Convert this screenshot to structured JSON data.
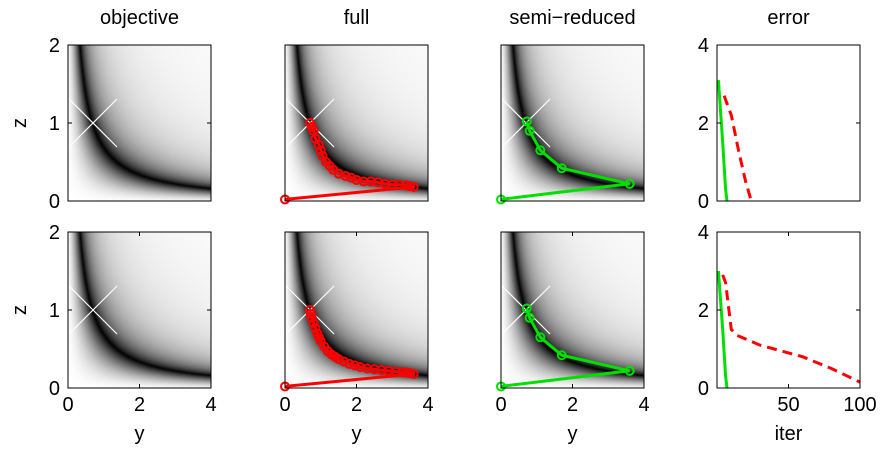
{
  "colors": {
    "red": "#ff0000",
    "green": "#00e000",
    "cross": "#ffffff",
    "valley": "#000000",
    "background": "#ffffff"
  },
  "chart_data": [
    {
      "type": "heatmap",
      "row": 0,
      "col": 0,
      "title": "objective",
      "xlim": [
        0,
        4
      ],
      "ylim": [
        0,
        2
      ],
      "xticks": [],
      "yticks": [
        "0",
        "1",
        "2"
      ],
      "xlabel": "",
      "ylabel": "z",
      "cross": [
        0.7,
        1.0
      ],
      "path": []
    },
    {
      "type": "line",
      "row": 0,
      "col": 1,
      "title": "full",
      "xlim": [
        0,
        4
      ],
      "ylim": [
        0,
        2
      ],
      "xticks": [],
      "yticks": [],
      "xlabel": "",
      "ylabel": "",
      "cross": [
        0.7,
        1.0
      ],
      "color": "red",
      "path": [
        [
          0,
          0.02
        ],
        [
          3.6,
          0.18
        ],
        [
          3.5,
          0.19
        ],
        [
          3.4,
          0.2
        ],
        [
          3.2,
          0.21
        ],
        [
          3.0,
          0.21
        ],
        [
          2.8,
          0.22
        ],
        [
          2.6,
          0.24
        ],
        [
          2.4,
          0.25
        ],
        [
          2.2,
          0.25
        ],
        [
          2.0,
          0.27
        ],
        [
          1.85,
          0.3
        ],
        [
          1.7,
          0.32
        ],
        [
          1.5,
          0.35
        ],
        [
          1.35,
          0.4
        ],
        [
          1.25,
          0.45
        ],
        [
          1.15,
          0.5
        ],
        [
          1.05,
          0.58
        ],
        [
          1.0,
          0.65
        ],
        [
          0.95,
          0.72
        ],
        [
          0.85,
          0.8
        ],
        [
          0.8,
          0.9
        ],
        [
          0.75,
          0.95
        ],
        [
          0.7,
          1.0
        ]
      ]
    },
    {
      "type": "line",
      "row": 0,
      "col": 2,
      "title": "semi−reduced",
      "xlim": [
        0,
        4
      ],
      "ylim": [
        0,
        2
      ],
      "xticks": [],
      "yticks": [],
      "xlabel": "",
      "ylabel": "",
      "cross": [
        0.7,
        1.0
      ],
      "color": "green",
      "path": [
        [
          0,
          0.02
        ],
        [
          3.6,
          0.22
        ],
        [
          1.7,
          0.42
        ],
        [
          1.1,
          0.65
        ],
        [
          0.8,
          0.9
        ],
        [
          0.72,
          1.02
        ]
      ]
    },
    {
      "type": "line",
      "row": 0,
      "col": 3,
      "title": "error",
      "xlim": [
        0,
        100
      ],
      "ylim": [
        0,
        4
      ],
      "xticks": [],
      "yticks": [
        "0",
        "2",
        "4"
      ],
      "xlabel": "",
      "ylabel": "",
      "series": [
        {
          "color": "red",
          "dash": true,
          "points": [
            [
              5,
              2.7
            ],
            [
              10,
              2.2
            ],
            [
              15,
              1.3
            ],
            [
              20,
              0.5
            ],
            [
              24,
              0
            ]
          ]
        },
        {
          "color": "green",
          "dash": false,
          "points": [
            [
              1,
              3.1
            ],
            [
              4,
              1.5
            ],
            [
              6,
              0.3
            ],
            [
              7,
              0
            ]
          ]
        }
      ]
    },
    {
      "type": "heatmap",
      "row": 1,
      "col": 0,
      "title": "",
      "xlim": [
        0,
        4
      ],
      "ylim": [
        0,
        2
      ],
      "xticks": [
        "0",
        "2",
        "4"
      ],
      "yticks": [
        "0",
        "1",
        "2"
      ],
      "xlabel": "y",
      "ylabel": "z",
      "cross": [
        0.7,
        1.0
      ],
      "path": []
    },
    {
      "type": "line",
      "row": 1,
      "col": 1,
      "title": "",
      "xlim": [
        0,
        4
      ],
      "ylim": [
        0,
        2
      ],
      "xticks": [
        "0",
        "2",
        "4"
      ],
      "yticks": [],
      "xlabel": "y",
      "ylabel": "",
      "cross": [
        0.7,
        1.0
      ],
      "color": "red",
      "path": [
        [
          0,
          0.02
        ],
        [
          3.6,
          0.18
        ],
        [
          3.5,
          0.19
        ],
        [
          3.4,
          0.2
        ],
        [
          3.3,
          0.2
        ],
        [
          3.1,
          0.21
        ],
        [
          2.9,
          0.22
        ],
        [
          2.7,
          0.23
        ],
        [
          2.5,
          0.24
        ],
        [
          2.3,
          0.25
        ],
        [
          2.1,
          0.27
        ],
        [
          1.95,
          0.29
        ],
        [
          1.8,
          0.31
        ],
        [
          1.65,
          0.34
        ],
        [
          1.5,
          0.37
        ],
        [
          1.4,
          0.4
        ],
        [
          1.3,
          0.43
        ],
        [
          1.2,
          0.47
        ],
        [
          1.1,
          0.53
        ],
        [
          1.0,
          0.6
        ],
        [
          0.95,
          0.65
        ],
        [
          0.9,
          0.7
        ],
        [
          0.85,
          0.77
        ],
        [
          0.8,
          0.83
        ],
        [
          0.75,
          0.9
        ],
        [
          0.72,
          0.95
        ],
        [
          0.7,
          1.0
        ]
      ]
    },
    {
      "type": "line",
      "row": 1,
      "col": 2,
      "title": "",
      "xlim": [
        0,
        4
      ],
      "ylim": [
        0,
        2
      ],
      "xticks": [
        "0",
        "2",
        "4"
      ],
      "yticks": [],
      "xlabel": "y",
      "ylabel": "",
      "cross": [
        0.7,
        1.0
      ],
      "color": "green",
      "path": [
        [
          0,
          0.02
        ],
        [
          3.6,
          0.22
        ],
        [
          1.7,
          0.42
        ],
        [
          1.1,
          0.65
        ],
        [
          0.8,
          0.9
        ],
        [
          0.72,
          1.02
        ]
      ]
    },
    {
      "type": "line",
      "row": 1,
      "col": 3,
      "title": "",
      "xlim": [
        0,
        100
      ],
      "ylim": [
        0,
        4
      ],
      "xticks": [
        "50",
        "100"
      ],
      "yticks": [
        "0",
        "2",
        "4"
      ],
      "xlabel": "iter",
      "ylabel": "",
      "series": [
        {
          "color": "red",
          "dash": true,
          "points": [
            [
              4,
              2.9
            ],
            [
              6,
              2.7
            ],
            [
              10,
              1.5
            ],
            [
              14,
              1.35
            ],
            [
              30,
              1.1
            ],
            [
              40,
              1.0
            ],
            [
              60,
              0.8
            ],
            [
              80,
              0.5
            ],
            [
              100,
              0.15
            ]
          ]
        },
        {
          "color": "green",
          "dash": false,
          "points": [
            [
              1,
              3.0
            ],
            [
              4,
              1.5
            ],
            [
              6,
              0.3
            ],
            [
              7,
              0
            ]
          ]
        }
      ]
    }
  ]
}
